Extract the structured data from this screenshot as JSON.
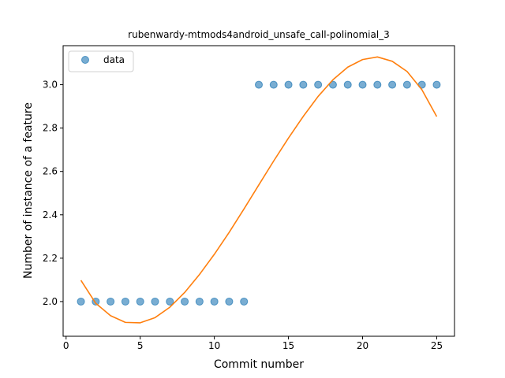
{
  "chart_data": {
    "type": "scatter",
    "title": "rubenwardy-mtmods4android_unsafe_call-polinomial_3",
    "xlabel": "Commit number",
    "ylabel": "Number of instance of a feature",
    "xlim": [
      -0.2,
      26.2
    ],
    "ylim": [
      1.84,
      3.18
    ],
    "xticks": [
      0,
      5,
      10,
      15,
      20,
      25
    ],
    "yticks": [
      2.0,
      2.2,
      2.4,
      2.6,
      2.8,
      3.0
    ],
    "xtick_labels": [
      "0",
      "5",
      "10",
      "15",
      "20",
      "25"
    ],
    "ytick_labels": [
      "2.0",
      "2.2",
      "2.4",
      "2.6",
      "2.8",
      "3.0"
    ],
    "legend_position": "top-left",
    "series": [
      {
        "name": "data",
        "kind": "scatter",
        "color": "#1f77b4",
        "x": [
          1,
          2,
          3,
          4,
          5,
          6,
          7,
          8,
          9,
          10,
          11,
          12,
          13,
          14,
          15,
          16,
          17,
          18,
          19,
          20,
          21,
          22,
          23,
          24,
          25
        ],
        "y": [
          2,
          2,
          2,
          2,
          2,
          2,
          2,
          2,
          2,
          2,
          2,
          2,
          3,
          3,
          3,
          3,
          3,
          3,
          3,
          3,
          3,
          3,
          3,
          3,
          3
        ]
      },
      {
        "kind": "line",
        "color": "#ff7f0e",
        "x": [
          1,
          2,
          3,
          4,
          5,
          6,
          7,
          8,
          9,
          10,
          11,
          12,
          13,
          14,
          15,
          16,
          17,
          18,
          19,
          20,
          21,
          22,
          23,
          24,
          25
        ],
        "y": [
          2.098,
          1.992,
          1.935,
          1.904,
          1.902,
          1.926,
          1.974,
          2.042,
          2.125,
          2.218,
          2.319,
          2.427,
          2.538,
          2.648,
          2.754,
          2.854,
          2.946,
          3.023,
          3.081,
          3.116,
          3.128,
          3.108,
          3.061,
          2.977,
          2.853
        ]
      }
    ]
  }
}
